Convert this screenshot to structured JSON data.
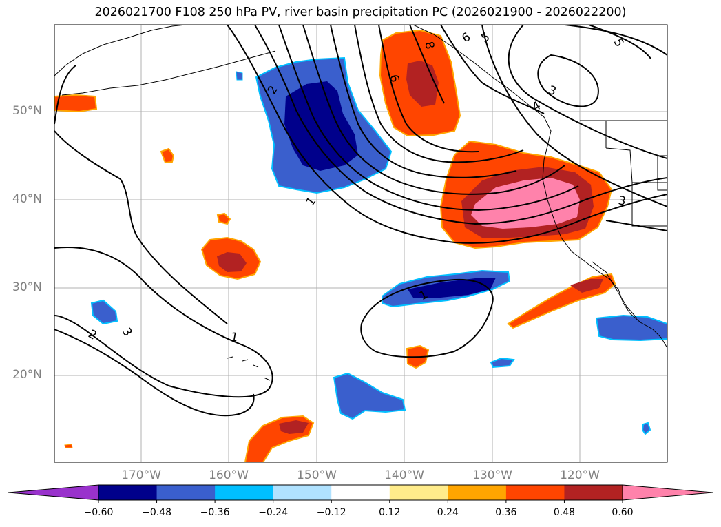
{
  "title": "2026021700 F108 250 hPa PV, river basin precipitation PC (2026021900 - 2026022200)",
  "lat_labels": [
    "50°N",
    "40°N",
    "30°N",
    "20°N"
  ],
  "lon_labels": [
    "170°W",
    "160°W",
    "150°W",
    "140°W",
    "130°W",
    "120°W"
  ],
  "contour_labels": [
    "2",
    "1",
    "6",
    "8",
    "6",
    "5",
    "5",
    "3",
    "4",
    "3",
    "1",
    "1",
    "2",
    "3"
  ],
  "colorbar": {
    "ticks": [
      "−0.60",
      "−0.48",
      "−0.36",
      "−0.24",
      "−0.12",
      "0.12",
      "0.24",
      "0.36",
      "0.48",
      "0.60"
    ],
    "colors": [
      "#9932cc",
      "#00008b",
      "#3a5fcd",
      "#00bfff",
      "#b0e2ff",
      "#ffffff",
      "#ffec8b",
      "#ffa500",
      "#ff4500",
      "#b22222",
      "#ff82ab"
    ]
  }
}
